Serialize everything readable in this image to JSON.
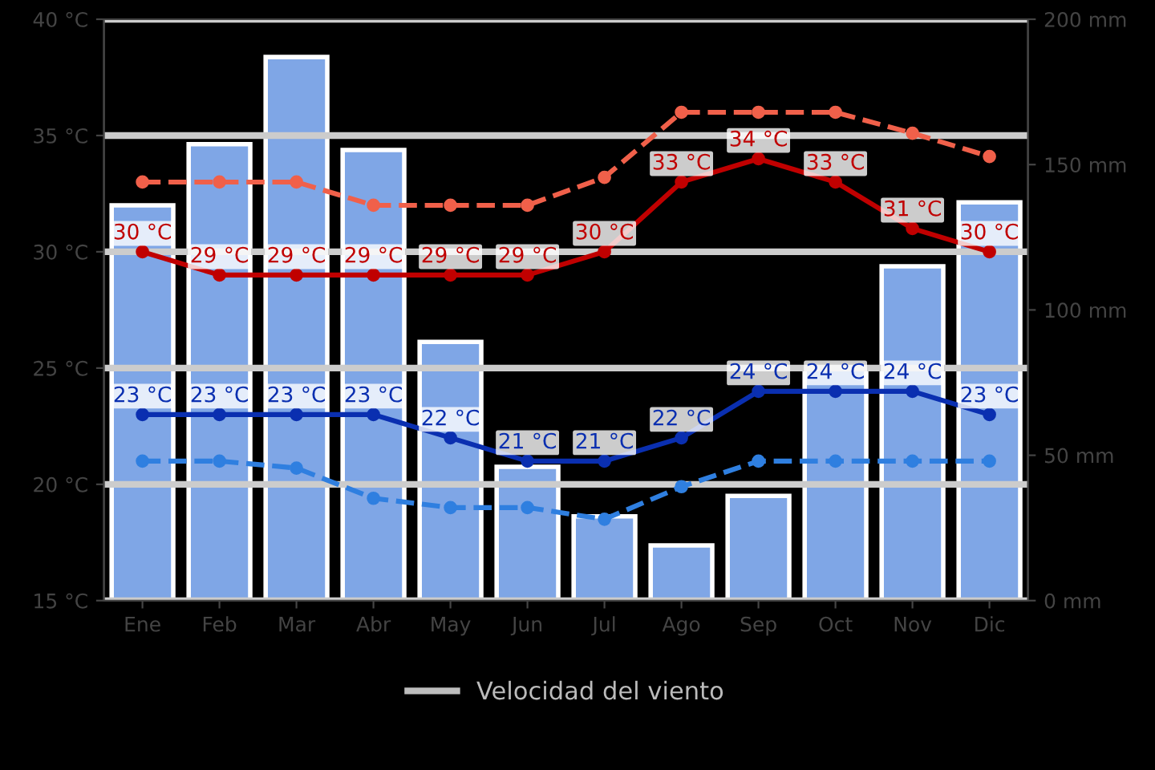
{
  "chart_data": {
    "type": "bar",
    "categories": [
      "Ene",
      "Feb",
      "Mar",
      "Abr",
      "May",
      "Jun",
      "Jul",
      "Ago",
      "Sep",
      "Oct",
      "Nov",
      "Dic"
    ],
    "ylim": [
      15,
      40
    ],
    "yticks": [
      {
        "value": 15,
        "label": "15 °C"
      },
      {
        "value": 20,
        "label": "20 °C"
      },
      {
        "value": 25,
        "label": "25 °C"
      },
      {
        "value": 30,
        "label": "30 °C"
      },
      {
        "value": 35,
        "label": "35 °C"
      },
      {
        "value": 40,
        "label": "40 °C"
      }
    ],
    "y2lim": [
      0,
      200
    ],
    "y2ticks": [
      {
        "value": 0,
        "label": "0 mm"
      },
      {
        "value": 50,
        "label": "50 mm"
      },
      {
        "value": 100,
        "label": "100 mm"
      },
      {
        "value": 150,
        "label": "150 mm"
      },
      {
        "value": 200,
        "label": "200 mm"
      }
    ],
    "grid": "y",
    "legend": "bottom",
    "marker": "circle",
    "series": [
      {
        "axis": "y2",
        "color": "#7fa6e6",
        "values": [
          136,
          157,
          187,
          155,
          89,
          46,
          29,
          19,
          36,
          80,
          115,
          137
        ]
      },
      {
        "type": "line",
        "color": "#c00000",
        "line_style": "solid",
        "values": [
          30,
          29,
          29,
          29,
          29,
          29,
          30,
          33,
          34,
          33,
          31,
          30
        ],
        "value_labels": [
          "30 °C",
          "29 °C",
          "29 °C",
          "29 °C",
          "29 °C",
          "29 °C",
          "30 °C",
          "33 °C",
          "34 °C",
          "33 °C",
          "31 °C",
          "30 °C"
        ]
      },
      {
        "type": "line",
        "color": "#0a2fb0",
        "line_style": "solid",
        "values": [
          23,
          23,
          23,
          23,
          22,
          21,
          21,
          22,
          24,
          24,
          24,
          23
        ],
        "value_labels": [
          "23 °C",
          "23 °C",
          "23 °C",
          "23 °C",
          "22 °C",
          "21 °C",
          "21 °C",
          "22 °C",
          "24 °C",
          "24 °C",
          "24 °C",
          "23 °C"
        ]
      },
      {
        "type": "line",
        "color": "#f0604a",
        "line_style": "dashed",
        "values": [
          33,
          33,
          33,
          32,
          32,
          32,
          33.2,
          36,
          36,
          36,
          35.1,
          34.1
        ]
      },
      {
        "type": "line",
        "color": "#2f7fe0",
        "line_style": "dashed",
        "values": [
          21,
          21,
          20.7,
          19.4,
          19,
          19,
          18.5,
          19.9,
          21,
          21,
          21,
          21
        ]
      },
      {
        "type": "line",
        "name": "Velocidad del viento",
        "color": "#bdbdbd",
        "line_style": "solid",
        "values": [
          null,
          null,
          null,
          null,
          null,
          null,
          null,
          null,
          null,
          null,
          null,
          null
        ]
      }
    ]
  }
}
